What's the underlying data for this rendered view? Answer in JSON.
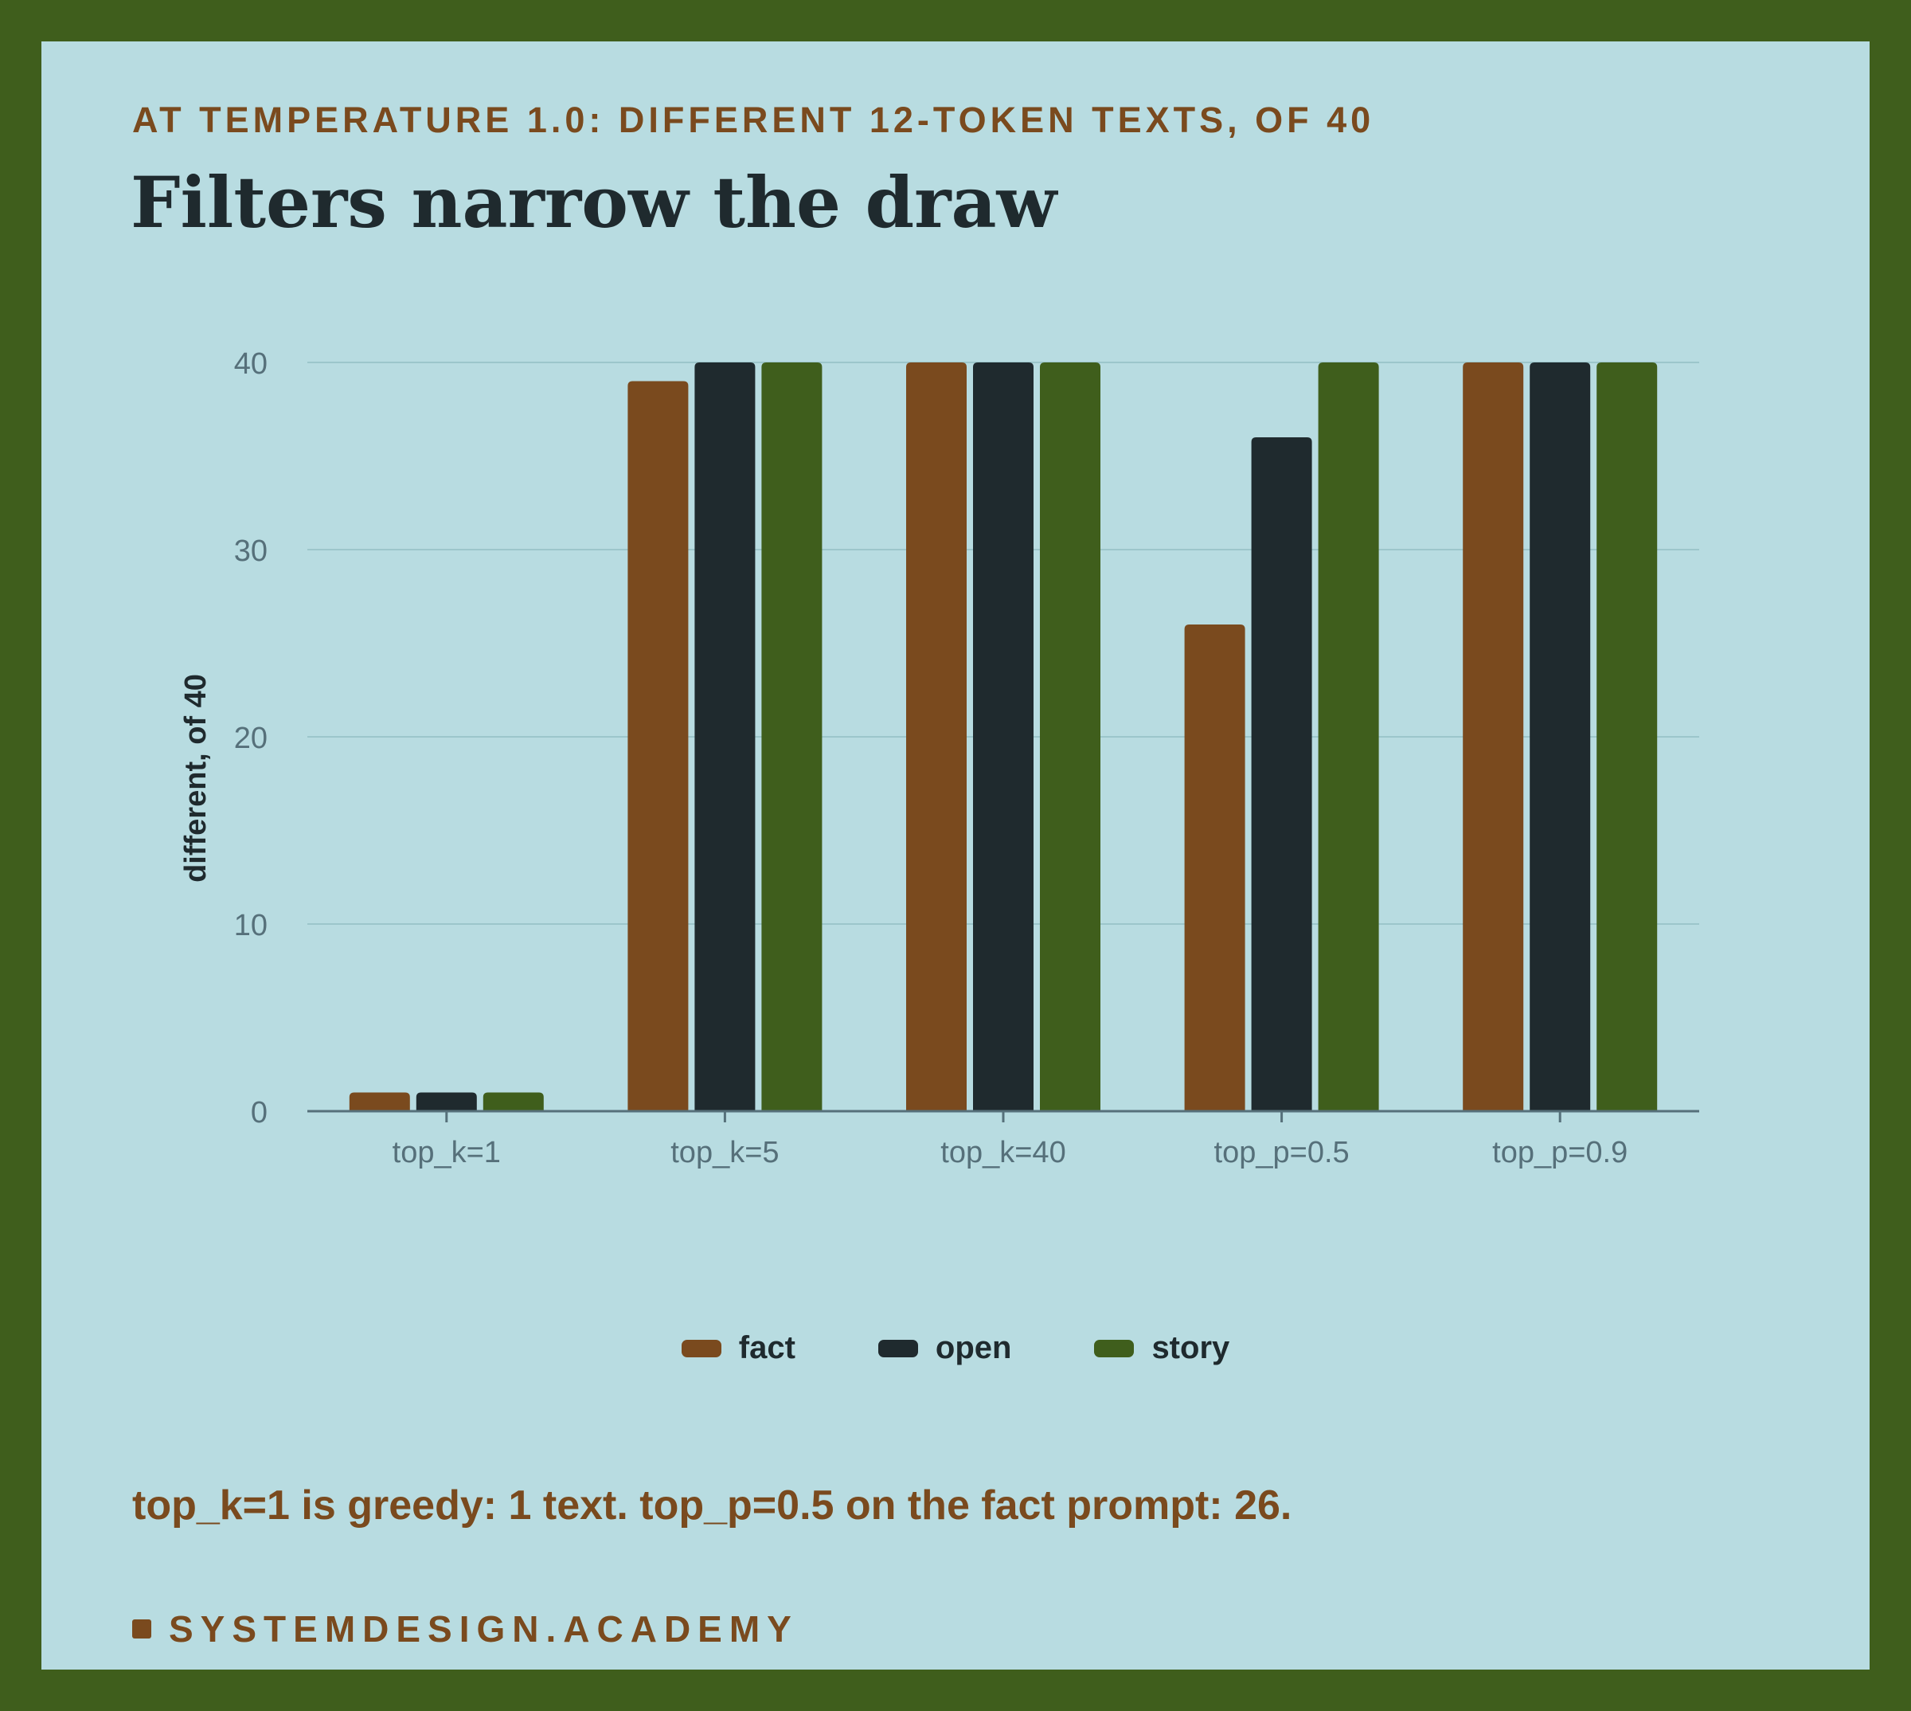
{
  "header": {
    "kicker": "AT TEMPERATURE 1.0: DIFFERENT 12-TOKEN TEXTS, OF 40",
    "title": "Filters narrow the draw"
  },
  "note": "top_k=1 is greedy: 1 text. top_p=0.5 on the fact prompt: 26.",
  "brand": "SYSTEMDESIGN.ACADEMY",
  "colors": {
    "background": "#b8dce1",
    "frame": "#3f5e1c",
    "fact": "#7a4a1e",
    "open": "#1f2a2e",
    "story": "#3f5e1c",
    "grid": "#9cc6cb",
    "axis": "#56707a"
  },
  "chart_data": {
    "type": "bar",
    "categories": [
      "top_k=1",
      "top_k=5",
      "top_k=40",
      "top_p=0.5",
      "top_p=0.9"
    ],
    "series": [
      {
        "name": "fact",
        "color": "#7a4a1e",
        "values": [
          1,
          39,
          40,
          26,
          40
        ]
      },
      {
        "name": "open",
        "color": "#1f2a2e",
        "values": [
          1,
          40,
          40,
          36,
          40
        ]
      },
      {
        "name": "story",
        "color": "#3f5e1c",
        "values": [
          1,
          40,
          40,
          40,
          40
        ]
      }
    ],
    "ylabel": "different, of 40",
    "xlabel": "",
    "ylim": [
      0,
      40
    ],
    "yticks": [
      0,
      10,
      20,
      30,
      40
    ],
    "grid": true,
    "legend_position": "bottom-center"
  }
}
